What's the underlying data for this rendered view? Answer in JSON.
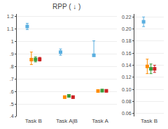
{
  "chart_data": [
    {
      "type": "scatter",
      "title": "RPP ( ↓ )",
      "marker": "square",
      "grid": true,
      "categories": [
        "Task B",
        "Task A|B",
        "Task A"
      ],
      "ylim": [
        0.4,
        1.22
      ],
      "yticks": [
        {
          "value": 0.4,
          "label": ".4"
        },
        {
          "value": 0.5,
          "label": ".5"
        },
        {
          "value": 0.6,
          "label": ".6"
        },
        {
          "value": 0.7,
          "label": ".7"
        },
        {
          "value": 0.8,
          "label": ".8"
        },
        {
          "value": 0.9,
          "label": ".9"
        },
        1,
        1.1,
        1.2
      ],
      "series": [
        {
          "color": "#5aafe0",
          "values": [
            1.12,
            0.915,
            0.89
          ],
          "yerr_lo": [
            0.025,
            0.025,
            0.01
          ],
          "yerr_hi": [
            0.025,
            0.025,
            0.115
          ]
        },
        {
          "color": "#ff8c00",
          "values": [
            0.855,
            0.555,
            0.604
          ],
          "yerr_lo": [
            0.04,
            0.01,
            0.01
          ],
          "yerr_hi": [
            0.06,
            0.01,
            0.01
          ]
        },
        {
          "color": "#3a9c3a",
          "values": [
            0.856,
            0.565,
            0.607
          ],
          "yerr_lo": [
            0.02,
            0.01,
            0.01
          ],
          "yerr_hi": [
            0.02,
            0.01,
            0.01
          ]
        },
        {
          "color": "#cc2222",
          "values": [
            0.858,
            0.555,
            0.605
          ],
          "yerr_lo": [
            0.015,
            0.01,
            0.01
          ],
          "yerr_hi": [
            0.015,
            0.01,
            0.01
          ]
        }
      ]
    },
    {
      "type": "scatter",
      "marker": "square",
      "grid": true,
      "categories": [
        "Task B"
      ],
      "ylim": [
        0.055,
        0.225
      ],
      "yticks": [
        0.06,
        0.08,
        {
          "value": 0.1,
          "label": "0.10"
        },
        0.12,
        0.14,
        0.16,
        0.18,
        {
          "value": 0.2,
          "label": "0.20"
        },
        0.22
      ],
      "series": [
        {
          "color": "#5aafe0",
          "values": [
            0.212
          ],
          "yerr_lo": [
            0.008
          ],
          "yerr_hi": [
            0.008
          ]
        },
        {
          "color": "#ff8c00",
          "values": [
            0.138
          ],
          "yerr_lo": [
            0.012
          ],
          "yerr_hi": [
            0.012
          ]
        },
        {
          "color": "#3a9c3a",
          "values": [
            0.134
          ],
          "yerr_lo": [
            0.008
          ],
          "yerr_hi": [
            0.008
          ]
        },
        {
          "color": "#cc2222",
          "values": [
            0.134
          ],
          "yerr_lo": [
            0.006
          ],
          "yerr_hi": [
            0.006
          ]
        }
      ]
    }
  ]
}
